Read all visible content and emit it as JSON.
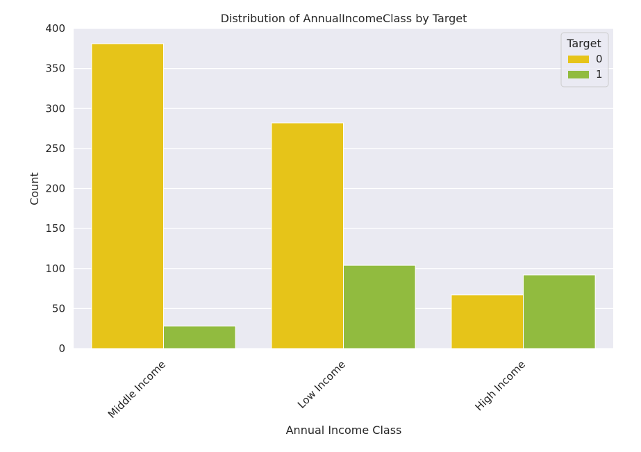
{
  "chart_data": {
    "type": "bar",
    "title": "Distribution of AnnualIncomeClass by Target",
    "xlabel": "Annual Income Class",
    "ylabel": "Count",
    "categories": [
      "Middle Income",
      "Low Income",
      "High Income"
    ],
    "series": [
      {
        "name": "0",
        "values": [
          381,
          282,
          67
        ],
        "color": "#e6c419"
      },
      {
        "name": "1",
        "values": [
          28,
          104,
          92
        ],
        "color": "#91bb3f"
      }
    ],
    "ylim": [
      0,
      400
    ],
    "yticks": [
      0,
      50,
      100,
      150,
      200,
      250,
      300,
      350,
      400
    ],
    "legend": {
      "title": "Target",
      "placement": "top-right"
    },
    "grid": true,
    "background": "#eaeaf2",
    "grid_color": "#ffffff"
  }
}
